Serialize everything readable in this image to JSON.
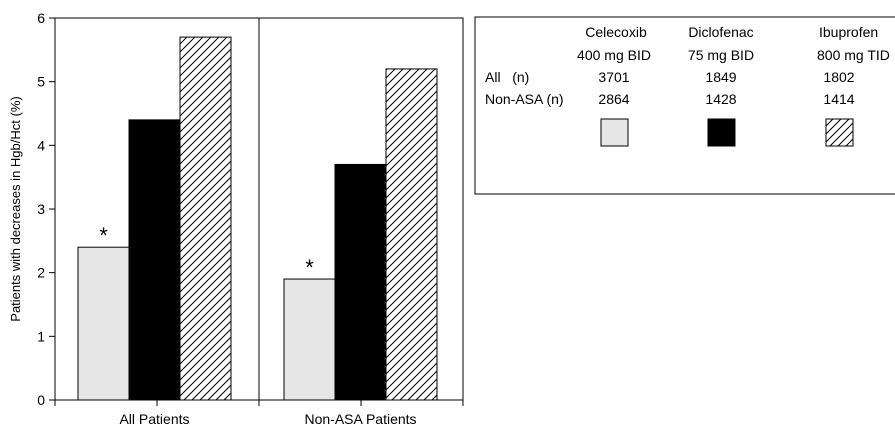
{
  "chart_data": {
    "type": "bar",
    "ylabel": "Patients with decreases in Hgb/Hct (%)",
    "ylim": [
      0,
      6
    ],
    "yticks": [
      0,
      1,
      2,
      3,
      4,
      5,
      6
    ],
    "grid": false,
    "categories": [
      "All Patients",
      "Non-ASA Patients"
    ],
    "series": [
      {
        "name": "Celecoxib 400 mg BID",
        "values": [
          2.4,
          1.9
        ],
        "fill": "light-gray",
        "color": "#e6e6e6"
      },
      {
        "name": "Diclofenac 75 mg BID",
        "values": [
          4.4,
          3.7
        ],
        "fill": "solid-black",
        "color": "#000000"
      },
      {
        "name": "Ibuprofen 800 mg TID",
        "values": [
          5.7,
          5.2
        ],
        "fill": "diagonal-hatch",
        "color": "#ffffff"
      }
    ],
    "annotations": [
      {
        "text": "*",
        "series": 0,
        "category": 0
      },
      {
        "text": "*",
        "series": 0,
        "category": 1
      }
    ],
    "legend": {
      "placement": "top-right",
      "drugs": [
        {
          "name": "Celecoxib",
          "dose": "400 mg BID"
        },
        {
          "name": "Diclofenac",
          "dose": "75 mg BID"
        },
        {
          "name": "Ibuprofen",
          "dose": "800 mg TID"
        }
      ],
      "rows": [
        {
          "label": "All   (n)",
          "values": [
            "3701",
            "1849",
            "1802"
          ]
        },
        {
          "label": "Non-ASA (n)",
          "values": [
            "2864",
            "1428",
            "1414"
          ]
        }
      ]
    }
  }
}
